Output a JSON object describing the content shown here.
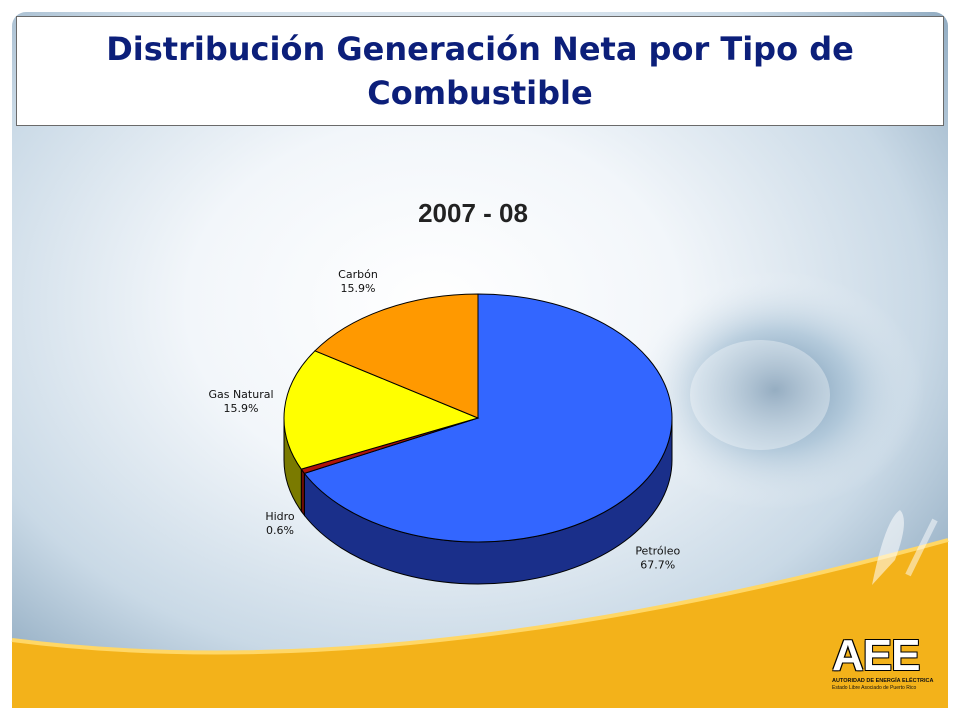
{
  "slide": {
    "title": "Distribución Generación Neta por Tipo de Combustible"
  },
  "chart_data": {
    "type": "pie",
    "title": "2007 - 08",
    "slices": [
      {
        "label": "Petróleo",
        "value": 67.7,
        "display": "67.7%",
        "color": "#3366ff",
        "side_color": "#1a2f8a"
      },
      {
        "label": "Hidro",
        "value": 0.6,
        "display": "0.6%",
        "color": "#b0140a",
        "side_color": "#6e0c06"
      },
      {
        "label": "Gas Natural",
        "value": 15.9,
        "display": "15.9%",
        "color": "#ffff00",
        "side_color": "#7a7a00"
      },
      {
        "label": "Carbón",
        "value": 15.9,
        "display": "15.9%",
        "color": "#ff9900",
        "side_color": "#8a5200"
      }
    ],
    "start_angle_deg": -90,
    "direction": "clockwise",
    "three_d": true,
    "legend": "none"
  },
  "logo": {
    "mark": "AEE",
    "line1": "AUTORIDAD DE ENERGÍA ELÉCTRICA",
    "line2": "Estado Libre Asociado de Puerto Rico"
  }
}
